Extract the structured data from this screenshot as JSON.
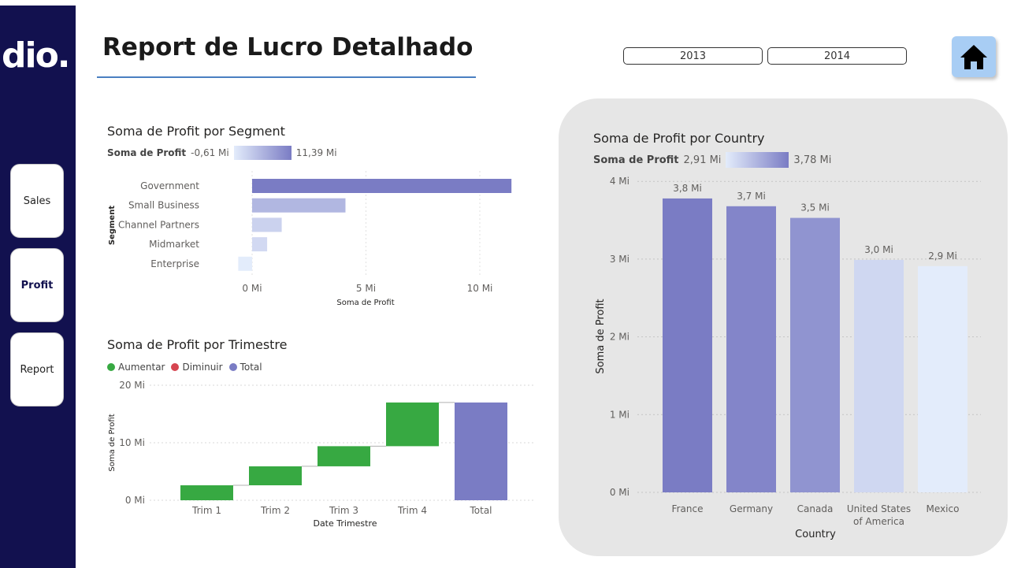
{
  "brand": {
    "logo_text": "dio."
  },
  "nav": {
    "items": [
      {
        "label": "Sales"
      },
      {
        "label": "Profit"
      },
      {
        "label": "Report"
      }
    ]
  },
  "header": {
    "title": "Report de Lucro Detalhado"
  },
  "year_filter": {
    "options": [
      "2013",
      "2014"
    ]
  },
  "colors": {
    "sidebar": "#12114f",
    "bar_max": "#7a7cc4",
    "increase": "#37a942",
    "decrease": "#d64550",
    "total": "#7a7cc4",
    "home_button": "#a8cdf4"
  },
  "icons": {
    "home": "home-icon"
  },
  "segment_chart": {
    "title": "Soma de Profit por Segment",
    "legend_label": "Soma de Profit",
    "legend_min": "-0,61 Mi",
    "legend_max": "11,39 Mi",
    "ylabel": "Segment",
    "xlabel": "Soma de Profit",
    "tick_labels": [
      "0 Mi",
      "5 Mi",
      "10 Mi"
    ]
  },
  "quarter_chart": {
    "title": "Soma de Profit por Trimestre",
    "legend": [
      "Aumentar",
      "Diminuir",
      "Total"
    ],
    "ylabel": "Soma de Profit",
    "xlabel": "Date Trimestre",
    "tick_labels": [
      "20 Mi",
      "10 Mi",
      "0 Mi"
    ]
  },
  "country_chart": {
    "title": "Soma de Profit por Country",
    "legend_label": "Soma de Profit",
    "legend_min": "2,91 Mi",
    "legend_max": "3,78 Mi",
    "ylabel": "Soma de Profit",
    "xlabel": "Country",
    "tick_labels": [
      "4 Mi",
      "3 Mi",
      "2 Mi",
      "1 Mi",
      "0 Mi"
    ]
  },
  "chart_data": [
    {
      "type": "bar",
      "orientation": "horizontal",
      "title": "Soma de Profit por Segment",
      "categories": [
        "Government",
        "Small Business",
        "Channel Partners",
        "Midmarket",
        "Enterprise"
      ],
      "values": [
        11.39,
        4.1,
        1.3,
        0.66,
        -0.61
      ],
      "unit": "Mi",
      "xlabel": "Soma de Profit",
      "ylabel": "Segment",
      "xlim": [
        -0.61,
        11.39
      ],
      "grid": true
    },
    {
      "type": "bar",
      "subtype": "waterfall",
      "title": "Soma de Profit por Trimestre",
      "categories": [
        "Trim 1",
        "Trim 2",
        "Trim 3",
        "Trim 4",
        "Total"
      ],
      "values": [
        2.6,
        3.3,
        3.5,
        7.6,
        17.0
      ],
      "unit": "Mi",
      "xlabel": "Date Trimestre",
      "ylabel": "Soma de Profit",
      "ylim": [
        0,
        20
      ],
      "legend": [
        "Aumentar",
        "Diminuir",
        "Total"
      ],
      "legend_position": "top-left",
      "grid": true
    },
    {
      "type": "bar",
      "title": "Soma de Profit por Country",
      "categories": [
        "France",
        "Germany",
        "Canada",
        "United States of America",
        "Mexico"
      ],
      "values": [
        3.78,
        3.68,
        3.53,
        2.99,
        2.91
      ],
      "data_labels": [
        "3,8 Mi",
        "3,7 Mi",
        "3,5 Mi",
        "3,0 Mi",
        "2,9 Mi"
      ],
      "unit": "Mi",
      "xlabel": "Country",
      "ylabel": "Soma de Profit",
      "ylim": [
        0,
        4
      ],
      "grid": true
    }
  ]
}
